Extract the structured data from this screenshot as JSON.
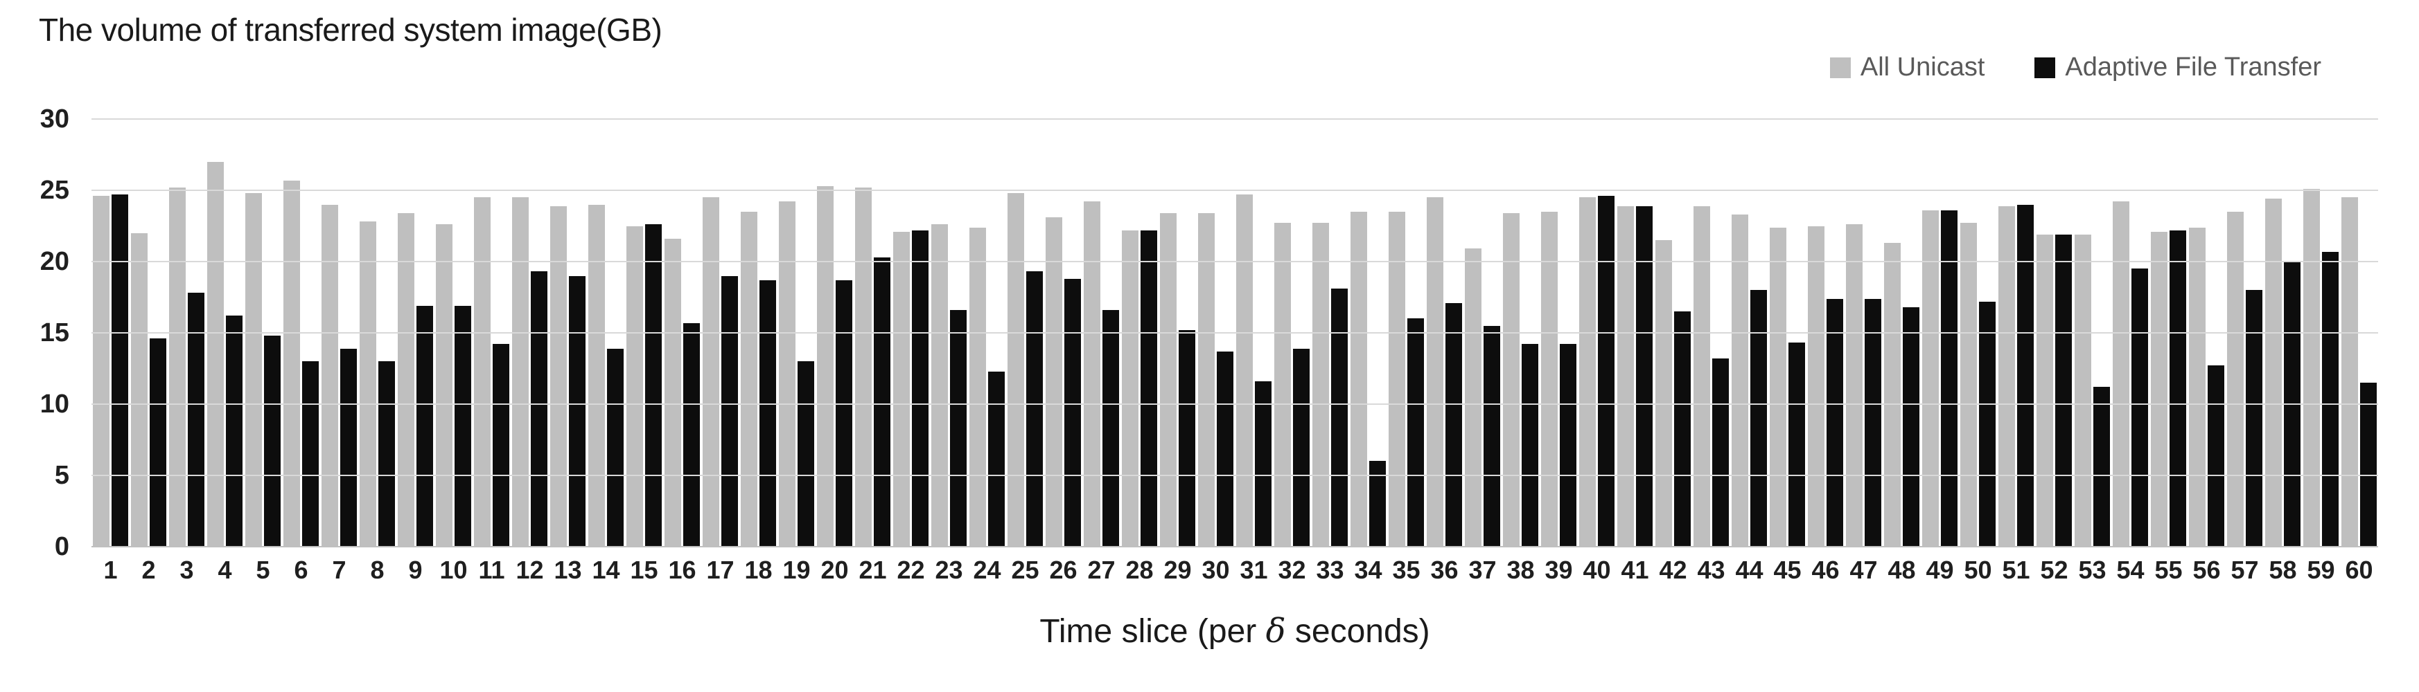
{
  "title": "The volume of transferred system image(GB)",
  "xaxis_title": {
    "prefix": "Time slice (per ",
    "delta": "δ",
    "suffix": " seconds)"
  },
  "colors": {
    "all_unicast": "#bfbfbf",
    "adaptive_file_transfer": "#0d0d0d",
    "gridline": "#d9d9d9",
    "axis_line": "#bfbfbf",
    "legend_text": "#595959"
  },
  "chart_data": {
    "type": "bar",
    "title": "The volume of transferred system image(GB)",
    "xlabel": "Time slice (per δ seconds)",
    "ylabel": "",
    "ylim": [
      0,
      30
    ],
    "ytick_step": 5,
    "ytick_labels": [
      "0",
      "5",
      "10",
      "15",
      "20",
      "25",
      "30"
    ],
    "grid": true,
    "legend_position": "top-right",
    "categories": [
      "1",
      "2",
      "3",
      "4",
      "5",
      "6",
      "7",
      "8",
      "9",
      "10",
      "11",
      "12",
      "13",
      "14",
      "15",
      "16",
      "17",
      "18",
      "19",
      "20",
      "21",
      "22",
      "23",
      "24",
      "25",
      "26",
      "27",
      "28",
      "29",
      "30",
      "31",
      "32",
      "33",
      "34",
      "35",
      "36",
      "37",
      "38",
      "39",
      "40",
      "41",
      "42",
      "43",
      "44",
      "45",
      "46",
      "47",
      "48",
      "49",
      "50",
      "51",
      "52",
      "53",
      "54",
      "55",
      "56",
      "57",
      "58",
      "59",
      "60"
    ],
    "series": [
      {
        "name": "All Unicast",
        "color": "#bfbfbf",
        "values": [
          24.6,
          22.0,
          25.2,
          27.0,
          24.8,
          25.7,
          24.0,
          22.8,
          23.4,
          22.6,
          24.5,
          24.5,
          23.9,
          24.0,
          22.5,
          21.6,
          24.5,
          23.5,
          24.2,
          25.3,
          25.2,
          22.1,
          22.6,
          22.4,
          24.8,
          23.1,
          24.2,
          22.2,
          23.4,
          23.4,
          24.7,
          22.7,
          22.7,
          23.5,
          23.5,
          24.5,
          20.9,
          23.4,
          23.5,
          24.5,
          23.9,
          21.5,
          23.9,
          23.3,
          22.4,
          22.5,
          22.6,
          21.3,
          23.6,
          22.7,
          23.9,
          21.9,
          21.9,
          24.2,
          22.1,
          22.4,
          23.5,
          24.4,
          25.1,
          24.5
        ]
      },
      {
        "name": "Adaptive File Transfer",
        "color": "#0d0d0d",
        "values": [
          24.7,
          14.6,
          17.8,
          16.2,
          14.8,
          13.0,
          13.9,
          13.0,
          16.9,
          16.9,
          14.2,
          19.3,
          19.0,
          13.9,
          22.6,
          15.7,
          19.0,
          18.7,
          13.0,
          18.7,
          20.3,
          22.2,
          16.6,
          12.3,
          19.3,
          18.8,
          16.6,
          22.2,
          15.2,
          13.7,
          11.6,
          13.9,
          18.1,
          6.0,
          16.0,
          17.1,
          15.5,
          14.2,
          14.2,
          24.6,
          23.9,
          16.5,
          13.2,
          18.0,
          14.3,
          17.4,
          17.4,
          16.8,
          23.6,
          17.2,
          24.0,
          21.9,
          11.2,
          19.5,
          22.2,
          12.7,
          18.0,
          20.0,
          20.7,
          11.5
        ]
      }
    ]
  }
}
